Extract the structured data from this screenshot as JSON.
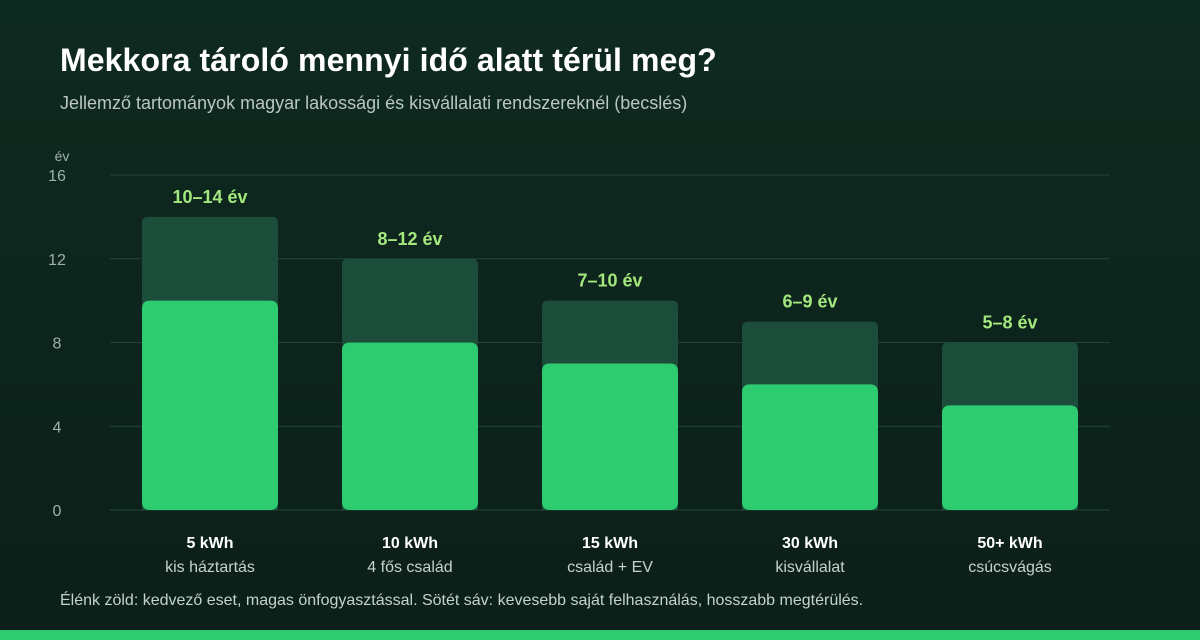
{
  "header": {
    "title": "Mekkora tároló mennyi idő alatt térül meg?",
    "subtitle": "Jellemző tartományok magyar lakossági és kisvállalati rendszereknél (becslés)"
  },
  "footnote": "Élénk zöld: kedvező eset, magas önfogyasztással. Sötét sáv: kevesebb saját felhasználás, hosszabb megtérülés.",
  "colors": {
    "favorable": "#2ecc71",
    "unfavorable": "#1c4d3a",
    "range_label": "#a3e77d",
    "grid": "#214638",
    "tick": "#9fb2a9"
  },
  "chart_data": {
    "type": "bar",
    "y_unit_label": "év",
    "ylim": [
      0,
      16
    ],
    "yticks": [
      0,
      4,
      8,
      12,
      16
    ],
    "grid": true,
    "categories": [
      {
        "size": "5 kWh",
        "desc": "kis háztartás"
      },
      {
        "size": "10 kWh",
        "desc": "4 fős család"
      },
      {
        "size": "15 kWh",
        "desc": "család + EV"
      },
      {
        "size": "30 kWh",
        "desc": "kisvállalat"
      },
      {
        "size": "50+ kWh",
        "desc": "csúcsvágás"
      }
    ],
    "series": [
      {
        "role": "favorable",
        "values": [
          10,
          8,
          7,
          6,
          5
        ]
      },
      {
        "role": "unfavorable",
        "values": [
          14,
          12,
          10,
          9,
          8
        ]
      }
    ],
    "range_labels": [
      "10–14 év",
      "8–12 év",
      "7–10 év",
      "6–9 év",
      "5–8 év"
    ]
  }
}
